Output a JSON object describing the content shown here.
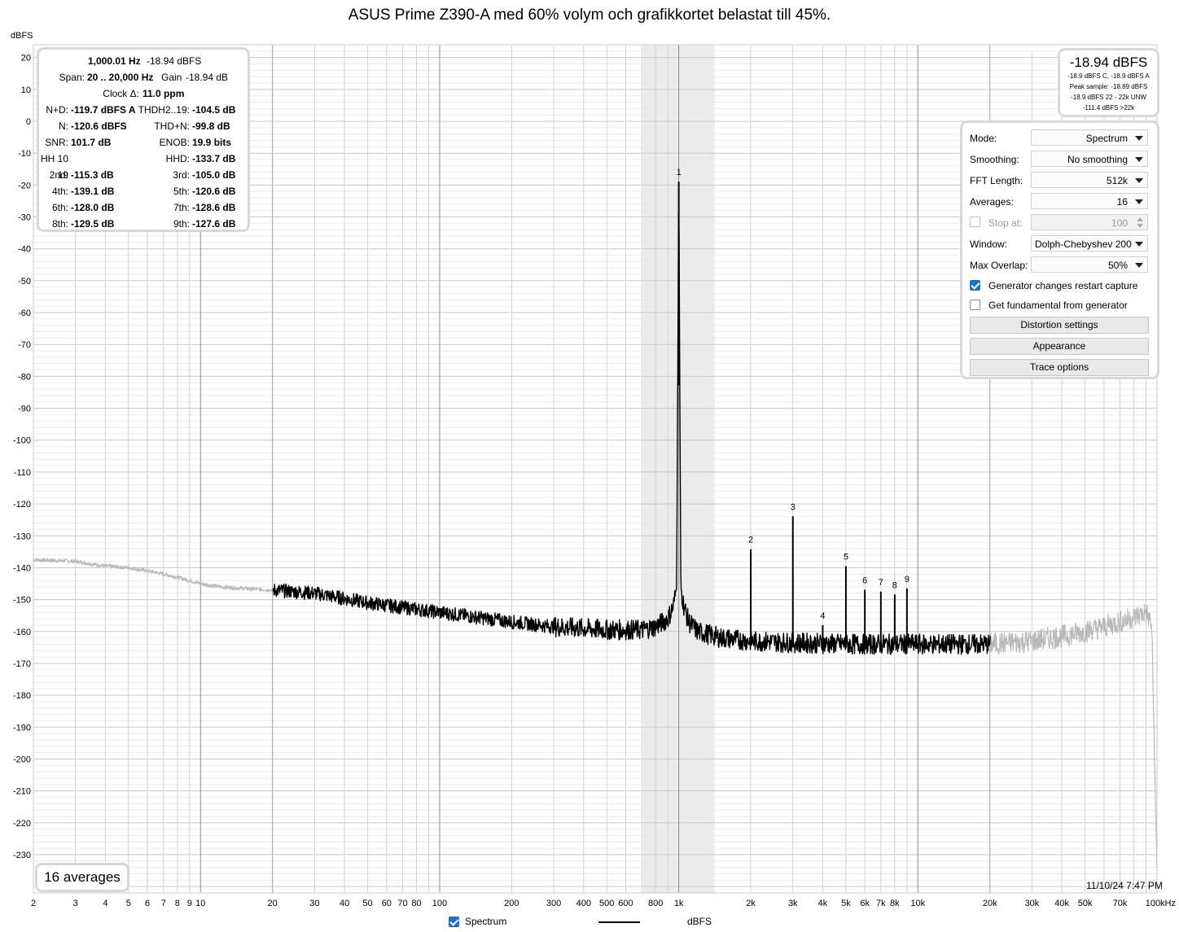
{
  "title": "ASUS Prime Z390-A med 60% volym och grafikkortet belastat till 45%.",
  "y_unit": "dBFS",
  "stats": {
    "freq": "1,000.01 Hz",
    "freq_level": "-18.94 dBFS",
    "span_label": "Span:",
    "span_value": "20 .. 20,000 Hz",
    "gain_label": "Gain",
    "gain_value": "-18.94 dB",
    "clock_label": "Clock Δ:",
    "clock_value": "11.0 ppm",
    "rows": [
      {
        "l1": "N+D:",
        "v1": "-119.7 dBFS A",
        "l2": "THDH2..19:",
        "v2": "-104.5 dB"
      },
      {
        "l1": "N:",
        "v1": "-120.6 dBFS",
        "l2": "THD+N:",
        "v2": "-99.8 dB"
      },
      {
        "l1": "SNR:",
        "v1": "101.7 dB",
        "l2": "ENOB:",
        "v2": "19.9 bits"
      },
      {
        "l1": "HH 10 .. 19",
        "v1": "",
        "l2": "HHD:",
        "v2": "-133.7 dB"
      },
      {
        "l1": "2nd:",
        "v1": "-115.3 dB",
        "l2": "3rd:",
        "v2": "-105.0 dB"
      },
      {
        "l1": "4th:",
        "v1": "-139.1 dB",
        "l2": "5th:",
        "v2": "-120.6 dB"
      },
      {
        "l1": "6th:",
        "v1": "-128.0 dB",
        "l2": "7th:",
        "v2": "-128.6 dB"
      },
      {
        "l1": "8th:",
        "v1": "-129.5 dB",
        "l2": "9th:",
        "v2": "-127.6 dB"
      }
    ]
  },
  "level": {
    "main": "-18.94 dBFS",
    "line1": "-18.9 dBFS C, -18.9 dBFS A",
    "line2": "Peak sample: -18.89 dBFS",
    "line3": "-18.9 dBFS 22 - 22k UNW",
    "line4": "-111.4 dBFS >22k"
  },
  "controls": {
    "mode_label": "Mode:",
    "mode_value": "Spectrum",
    "smoothing_label": "Smoothing:",
    "smoothing_value": "No smoothing",
    "fft_label": "FFT Length:",
    "fft_value": "512k",
    "averages_label": "Averages:",
    "averages_value": "16",
    "stop_label": "Stop at:",
    "stop_value": "100",
    "window_label": "Window:",
    "window_value": "Dolph-Chebyshev 200",
    "overlap_label": "Max Overlap:",
    "overlap_value": "50%",
    "gen_restart_label": "Generator changes restart capture",
    "gen_restart_checked": true,
    "fund_from_gen_label": "Get fundamental from generator",
    "fund_from_gen_checked": false,
    "distortion_button": "Distortion settings",
    "appearance_button": "Appearance",
    "trace_button": "Trace options"
  },
  "averages_badge": "16 averages",
  "timestamp": "11/10/24 7:47 PM",
  "legend": {
    "checkbox_label": "Spectrum",
    "series_unit": "dBFS",
    "checked": true
  },
  "colors": {
    "trace": "#000000",
    "trace_outside_band": "#b9b9b9",
    "band_shade": "#ebebeb",
    "panel_border": "#d8d8d8",
    "checkbox": "#1f6fd1"
  },
  "chart_data": {
    "type": "line",
    "title": "ASUS Prime Z390-A med 60% volym och grafikkortet belastat till 45%.",
    "ylabel": "dBFS",
    "xscale": "log",
    "xlim": [
      2,
      100000
    ],
    "ylim": [
      -240,
      25
    ],
    "grid": true,
    "x_ticks": [
      2,
      3,
      4,
      5,
      6,
      7,
      8,
      9,
      10,
      20,
      30,
      40,
      50,
      60,
      70,
      80,
      100,
      200,
      300,
      400,
      500,
      600,
      800,
      1000,
      2000,
      3000,
      4000,
      5000,
      6000,
      7000,
      8000,
      10000,
      20000,
      30000,
      40000,
      50000,
      70000,
      100000
    ],
    "x_tick_labels": [
      "2",
      "3",
      "4",
      "5",
      "6",
      "7",
      "8",
      "9",
      "10",
      "20",
      "30",
      "40",
      "50",
      "60",
      "70",
      "80",
      "100",
      "200",
      "300",
      "400",
      "500",
      "600",
      "800",
      "1k",
      "2k",
      "3k",
      "4k",
      "5k",
      "6k",
      "7k",
      "8k",
      "10k",
      "20k",
      "30k",
      "40k",
      "50k",
      "70k",
      "100kHz"
    ],
    "y_ticks": [
      20,
      10,
      0,
      -10,
      -20,
      -30,
      -40,
      -50,
      -60,
      -70,
      -80,
      -90,
      -100,
      -110,
      -120,
      -130,
      -140,
      -150,
      -160,
      -170,
      -180,
      -190,
      -200,
      -210,
      -220,
      -230
    ],
    "analysis_band_hz": [
      20,
      20000
    ],
    "shaded_band_hz": [
      707,
      1414
    ],
    "series": [
      {
        "name": "Spectrum",
        "x": [
          2,
          3,
          4,
          5,
          6,
          7,
          8,
          10,
          12,
          15,
          20,
          30,
          50,
          100,
          200,
          300,
          500,
          700,
          800,
          900,
          950,
          980,
          1000,
          1020,
          1050,
          1100,
          1200,
          1500,
          2000,
          3000,
          5000,
          10000,
          20000,
          30000,
          40000,
          50000,
          60000,
          70000,
          80000,
          90000,
          95000,
          100000
        ],
        "y": [
          -137.5,
          -138,
          -139.5,
          -140,
          -141,
          -142,
          -143,
          -145,
          -146,
          -146.5,
          -147,
          -148,
          -151,
          -154,
          -157,
          -158.5,
          -159.5,
          -159.5,
          -158.5,
          -156,
          -152,
          -146,
          -18.94,
          -146,
          -152,
          -157,
          -160,
          -162,
          -163,
          -163.5,
          -164,
          -164,
          -164,
          -163,
          -161.5,
          -160,
          -158.5,
          -157,
          -155.5,
          -154,
          -158,
          -235
        ]
      }
    ],
    "harmonics": [
      {
        "label": "1",
        "freq": 1000,
        "level": -18.94
      },
      {
        "label": "2",
        "freq": 2000,
        "level": -134.2
      },
      {
        "label": "3",
        "freq": 3000,
        "level": -123.9
      },
      {
        "label": "4",
        "freq": 4000,
        "level": -158.0
      },
      {
        "label": "5",
        "freq": 5000,
        "level": -139.5
      },
      {
        "label": "6",
        "freq": 6000,
        "level": -146.9
      },
      {
        "label": "7",
        "freq": 7000,
        "level": -147.5
      },
      {
        "label": "8",
        "freq": 8000,
        "level": -148.4
      },
      {
        "label": "9",
        "freq": 9000,
        "level": -146.5
      }
    ]
  }
}
